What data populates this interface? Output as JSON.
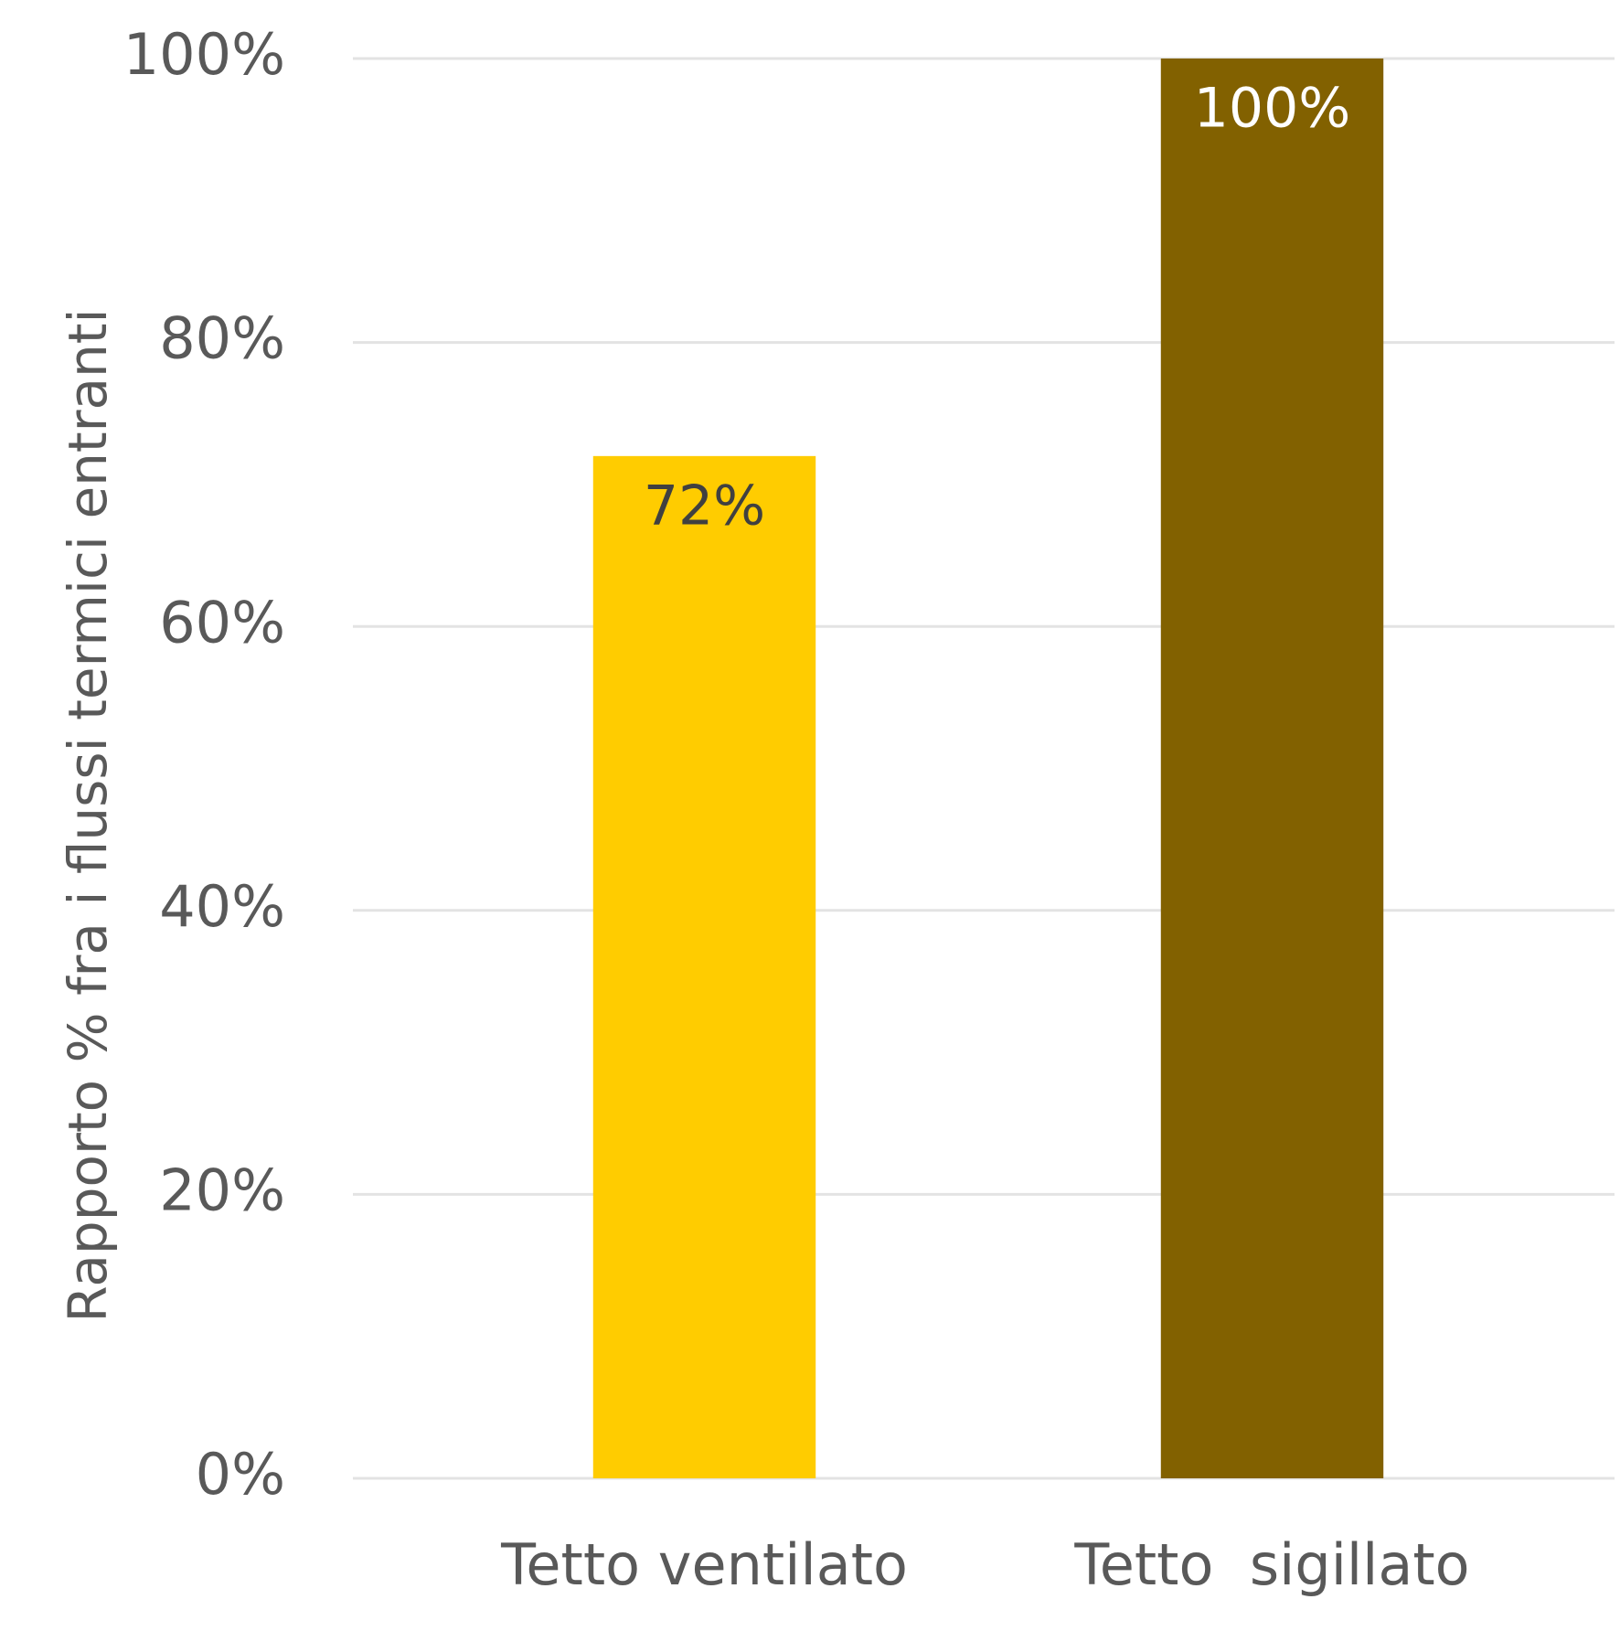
{
  "chart_data": {
    "type": "bar",
    "y_axis_label": "Rapporto % fra i flussi termici entranti",
    "categories": [
      "Tetto ventilato",
      "Tetto  sigillato"
    ],
    "values": [
      72,
      100
    ],
    "value_labels": [
      "72%",
      "100%"
    ],
    "colors": [
      "#ffcc00",
      "#826100"
    ],
    "value_label_colors": [
      "#404040",
      "#ffffff"
    ],
    "ylim": [
      0,
      100
    ],
    "yticks": [
      {
        "value": 0,
        "label": "0%"
      },
      {
        "value": 20,
        "label": "20%"
      },
      {
        "value": 40,
        "label": "40%"
      },
      {
        "value": 60,
        "label": "60%"
      },
      {
        "value": 80,
        "label": "80%"
      },
      {
        "value": 100,
        "label": "100%"
      }
    ],
    "grid": true
  }
}
